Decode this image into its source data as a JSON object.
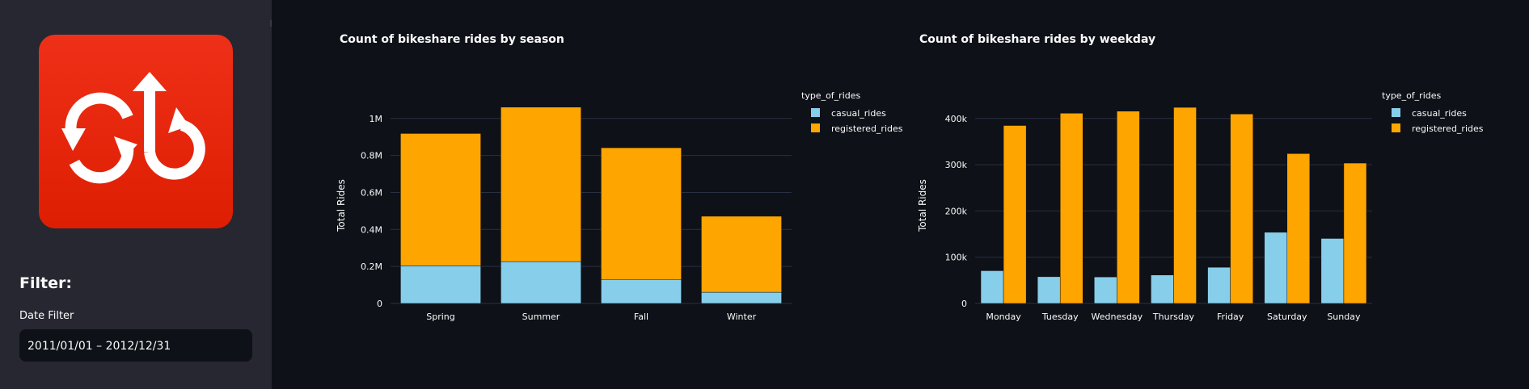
{
  "sidebar": {
    "logo_name": "bikeshare-logo",
    "filter_title": "Filter:",
    "date_filter_label": "Date Filter",
    "date_filter_value": "2011/01/01 – 2012/12/31"
  },
  "colors": {
    "casual": "#87ceeb",
    "registered": "#ffa500",
    "background": "#0e1117",
    "sidebar": "#262730",
    "logo": "#e8260c"
  },
  "chart_data": [
    {
      "type": "bar",
      "stacked": true,
      "title": "Count of bikeshare rides by season",
      "xlabel": "",
      "ylabel": "Total Rides",
      "categories": [
        "Spring",
        "Summer",
        "Fall",
        "Winter"
      ],
      "series": [
        {
          "name": "casual_rides",
          "values": [
            203522,
            226091,
            129782,
            60622
          ]
        },
        {
          "name": "registered_rides",
          "values": [
            715067,
            835038,
            711831,
            410726
          ]
        }
      ],
      "ylim": [
        0,
        1060000
      ],
      "yticks": [
        0,
        200000,
        400000,
        600000,
        800000,
        1000000
      ],
      "ytick_labels": [
        "0",
        "0.2M",
        "0.4M",
        "0.6M",
        "0.8M",
        "1M"
      ],
      "legend_title": "type_of_rides",
      "legend_position": "top-right"
    },
    {
      "type": "bar",
      "stacked": false,
      "title": "Count of bikeshare rides by weekday",
      "xlabel": "",
      "ylabel": "Total Rides",
      "categories": [
        "Monday",
        "Tuesday",
        "Wednesday",
        "Thursday",
        "Friday",
        "Saturday",
        "Sunday"
      ],
      "series": [
        {
          "name": "casual_rides",
          "values": [
            70784,
            57843,
            57319,
            61460,
            78238,
            153852,
            140521
          ]
        },
        {
          "name": "registered_rides",
          "values": [
            384719,
            411266,
            415729,
            423935,
            409552,
            323955,
            303506
          ]
        }
      ],
      "ylim": [
        0,
        424000
      ],
      "yticks": [
        0,
        100000,
        200000,
        300000,
        400000
      ],
      "ytick_labels": [
        "0",
        "100k",
        "200k",
        "300k",
        "400k"
      ],
      "legend_title": "type_of_rides",
      "legend_position": "top-right"
    }
  ]
}
